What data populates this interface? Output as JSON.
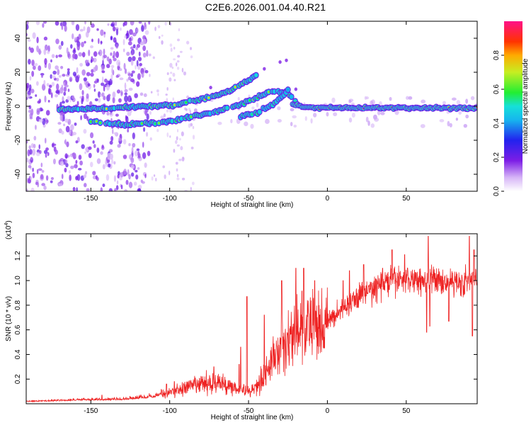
{
  "title": "C2E6.2026.001.04.40.R21",
  "colors": {
    "accent": "#ee2222",
    "frame": "#000000"
  },
  "chart_data": [
    {
      "type": "heatmap",
      "title": "C2E6.2026.001.04.40.R21",
      "xlabel": "Height of straight line (km)",
      "ylabel": "Frequency (Hz)",
      "xlim": [
        -191,
        95
      ],
      "ylim": [
        -50,
        50
      ],
      "x_ticks": [
        -150,
        -100,
        -50,
        0,
        50
      ],
      "x_tick_labels": [
        "-150",
        "-100",
        "-50",
        "0",
        "50"
      ],
      "y_ticks": [
        -40,
        -20,
        0,
        20,
        40
      ],
      "y_tick_labels": [
        "-40",
        "-20",
        "0",
        "20",
        "40"
      ],
      "colorbar": {
        "label": "Normalized spectral amplitude",
        "range": [
          0,
          1
        ],
        "ticks": [
          0.0,
          0.2,
          0.4,
          0.6,
          0.8
        ],
        "tick_labels": [
          "0.0",
          "0.2",
          "0.4",
          "0.6",
          "0.8"
        ]
      },
      "traces": [
        {
          "name": "upper arc",
          "points": [
            [
              -170,
              -2
            ],
            [
              -140,
              -1
            ],
            [
              -110,
              0
            ],
            [
              -95,
              1
            ],
            [
              -80,
              4
            ],
            [
              -65,
              8
            ],
            [
              -52,
              14
            ],
            [
              -45,
              18
            ]
          ],
          "amplitude": 0.65
        },
        {
          "name": "lower arc",
          "points": [
            [
              -150,
              -9
            ],
            [
              -130,
              -11
            ],
            [
              -115,
              -10
            ],
            [
              -100,
              -9
            ],
            [
              -85,
              -6
            ],
            [
              -70,
              -3
            ],
            [
              -55,
              1
            ],
            [
              -45,
              5
            ],
            [
              -35,
              9
            ],
            [
              -25,
              8
            ],
            [
              -20,
              2
            ]
          ],
          "amplitude": 0.6
        },
        {
          "name": "right branch",
          "points": [
            [
              -55,
              -6
            ],
            [
              -45,
              -4
            ],
            [
              -35,
              1
            ],
            [
              -28,
              6
            ],
            [
              -24,
              11
            ]
          ],
          "amplitude": 0.55
        },
        {
          "name": "carrier",
          "points": [
            [
              -22,
              1
            ],
            [
              -10,
              -1
            ],
            [
              0,
              -1
            ],
            [
              20,
              -1
            ],
            [
              50,
              -1
            ],
            [
              80,
              -1
            ],
            [
              95,
              -1
            ]
          ],
          "amplitude": 0.95
        }
      ]
    },
    {
      "type": "line",
      "xlabel": "Height of straight line (km)",
      "ylabel": "SNR (10 * v/v)",
      "y_multiplier": "(x10",
      "y_multiplier_exp": "4",
      "xlim": [
        -191,
        95
      ],
      "ylim": [
        0,
        13800
      ],
      "x_ticks": [
        -150,
        -100,
        -50,
        0,
        50
      ],
      "x_tick_labels": [
        "-150",
        "-100",
        "-50",
        "0",
        "50"
      ],
      "y_ticks": [
        0.2,
        0.4,
        0.6,
        0.8,
        1.0,
        1.2
      ],
      "y_tick_labels": [
        "0.2",
        "0.4",
        "0.6",
        "0.8",
        "1.0",
        "1.2"
      ],
      "series": [
        {
          "name": "SNR",
          "color": "#ee2222",
          "envelope": {
            "x": [
              -191,
              -160,
              -130,
              -110,
              -100,
              -90,
              -80,
              -70,
              -60,
              -50,
              -45,
              -40,
              -35,
              -30,
              -25,
              -20,
              -15,
              -10,
              -5,
              0,
              5,
              10,
              15,
              20,
              30,
              40,
              50,
              60,
              70,
              80,
              90,
              95
            ],
            "y": [
              150,
              250,
              300,
              500,
              900,
              1300,
              1600,
              1700,
              1400,
              1000,
              1400,
              2400,
              3400,
              4600,
              5200,
              5800,
              6000,
              6200,
              6400,
              6600,
              7200,
              7800,
              8200,
              8800,
              9400,
              10000,
              10100,
              10100,
              10000,
              9900,
              9900,
              10100
            ]
          },
          "spikes": [
            [
              -143,
              700
            ],
            [
              -102,
              1600
            ],
            [
              -97,
              1800
            ],
            [
              -72,
              3000
            ],
            [
              -55,
              4600
            ],
            [
              -56,
              3200
            ],
            [
              -51,
              8700
            ],
            [
              -40,
              7200
            ],
            [
              -29,
              10000
            ],
            [
              -20,
              11000
            ],
            [
              -15,
              11000
            ],
            [
              -8,
              10000
            ],
            [
              10,
              10000
            ],
            [
              14,
              10800
            ],
            [
              23,
              11300
            ],
            [
              35,
              11000
            ],
            [
              41,
              12500
            ],
            [
              49,
              12100
            ],
            [
              64,
              13600
            ],
            [
              70,
              10500
            ],
            [
              90,
              13600
            ],
            [
              93,
              12500
            ]
          ],
          "dips": [
            [
              63,
              5800
            ],
            [
              65,
              6300
            ],
            [
              77,
              6700
            ],
            [
              92,
              5500
            ]
          ]
        }
      ]
    }
  ]
}
